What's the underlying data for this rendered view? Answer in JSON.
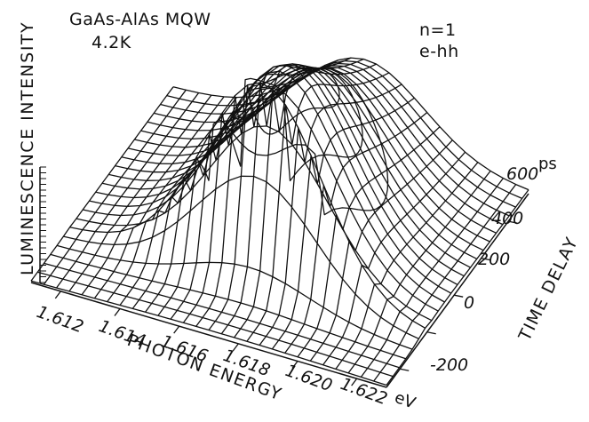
{
  "chart_data": {
    "type": "surface3d",
    "title_line1": "GaAs-AlAs MQW",
    "title_line2": "4.2K",
    "annotation_line1": "n=1",
    "annotation_line2": "e-hh",
    "zlabel": "LUMINESCENCE INTENSITY",
    "xlabel": "PHOTON ENERGY",
    "ylabel": "TIME DELAY",
    "x_unit": "eV",
    "y_unit": "ps",
    "x_ticks": [
      "1.612",
      "1.614",
      "1.616",
      "1.618",
      "1.620",
      "1.622"
    ],
    "y_ticks": [
      "-200",
      "0",
      "200",
      "400",
      "600"
    ],
    "xlim": [
      1.611,
      1.623
    ],
    "ylim": [
      -300,
      750
    ],
    "surface": {
      "peak_energy_eV": 1.6175,
      "energy_width_eV": 0.0028,
      "rise_time_ps": 80,
      "decay_time_ps": 900,
      "peak_intensity": 1.0
    }
  },
  "colors": {
    "line": "#111111",
    "background": "#ffffff"
  }
}
